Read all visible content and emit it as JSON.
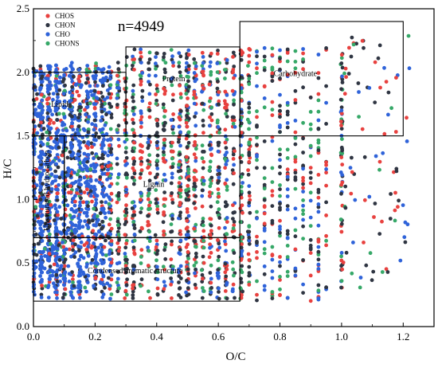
{
  "chart_data": {
    "type": "scatter",
    "title": "",
    "xlabel": "O/C",
    "ylabel": "H/C",
    "xlim": [
      0.0,
      1.3
    ],
    "ylim": [
      0.0,
      2.5
    ],
    "x_ticks": [
      "0.0",
      "0.2",
      "0.4",
      "0.6",
      "0.8",
      "1.0",
      "1.2"
    ],
    "y_ticks": [
      "0.0",
      "0.5",
      "1.0",
      "1.5",
      "2.0",
      "2.5"
    ],
    "grid": false,
    "legend_position": "top-left",
    "annotation": "n=4949",
    "series": [
      {
        "name": "CHOS",
        "color": "#e8413f"
      },
      {
        "name": "CHON",
        "color": "#2f3542"
      },
      {
        "name": "CHO",
        "color": "#2f63d9"
      },
      {
        "name": "CHONS",
        "color": "#36a868"
      }
    ],
    "regions": [
      {
        "label": "Lipid",
        "x": [
          0.0,
          0.3
        ],
        "y": [
          1.5,
          2.0
        ]
      },
      {
        "label": "Protein",
        "x": [
          0.3,
          0.67
        ],
        "y": [
          1.5,
          2.2
        ]
      },
      {
        "label": "Carbohydrate",
        "x": [
          0.67,
          1.2
        ],
        "y": [
          1.5,
          2.4
        ]
      },
      {
        "label": "Lignin",
        "x": [
          0.1,
          0.67
        ],
        "y": [
          0.7,
          1.5
        ]
      },
      {
        "label": "Unsaturated hydrocarbon",
        "x": [
          0.0,
          0.1
        ],
        "y": [
          0.7,
          1.5
        ]
      },
      {
        "label": "Condensed aromatic structure",
        "x": [
          0.0,
          0.67
        ],
        "y": [
          0.2,
          0.7
        ]
      }
    ]
  }
}
